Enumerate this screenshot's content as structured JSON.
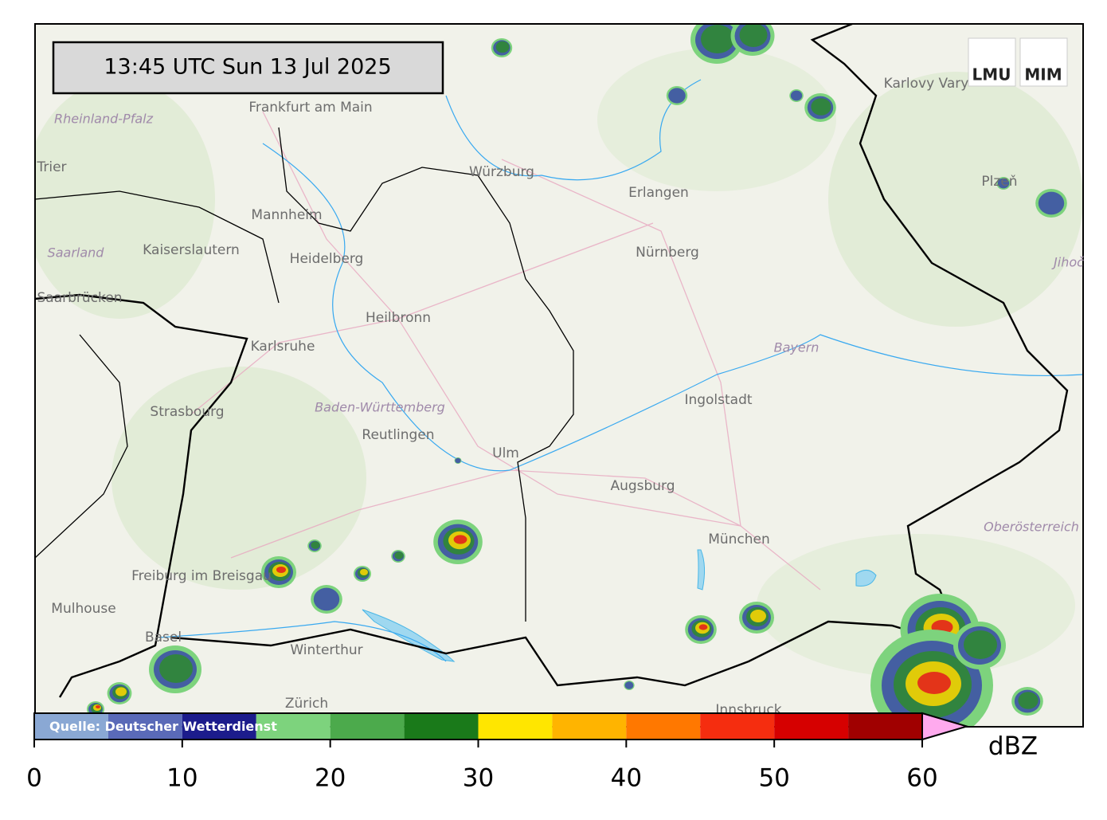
{
  "map": {
    "timestamp": "13:45 UTC  Sun 13 Jul 2025",
    "logos": [
      "LMU",
      "MIM"
    ],
    "places": [
      "Frankfurt am Main",
      "Rheinland-Pfalz",
      "Trier",
      "Mannheim",
      "Kaiserslautern",
      "Heidelberg",
      "Saarland",
      "Saarbrücken",
      "Karlsruhe",
      "Heilbronn",
      "Würzburg",
      "Erlangen",
      "Nürnberg",
      "Karlovy Vary",
      "Plzeň",
      "Jihoč",
      "Strasbourg",
      "Baden-Württemberg",
      "Reutlingen",
      "Ulm",
      "Ingolstadt",
      "Bayern",
      "Augsburg",
      "München",
      "Oberösterreich",
      "Freiburg im Breisgau",
      "Mulhouse",
      "Basel",
      "Winterthur",
      "Zürich",
      "Innsbruck"
    ],
    "colorbar": {
      "source": "Quelle: Deutscher Wetterdienst",
      "bounds": [
        0,
        5,
        10,
        15,
        20,
        25,
        30,
        35,
        40,
        45,
        50,
        55,
        60
      ],
      "colors": [
        "#8aa8d4",
        "#5a6ab8",
        "#1c1c8c",
        "#7dd37d",
        "#4caa4c",
        "#1a7a1a",
        "#ffe600",
        "#ffb400",
        "#ff7800",
        "#f52d0f",
        "#d60000",
        "#a00000"
      ],
      "extend_color": "#ffaaee",
      "ticks": [
        0,
        10,
        20,
        30,
        40,
        50,
        60
      ],
      "unit": "dBZ"
    }
  }
}
